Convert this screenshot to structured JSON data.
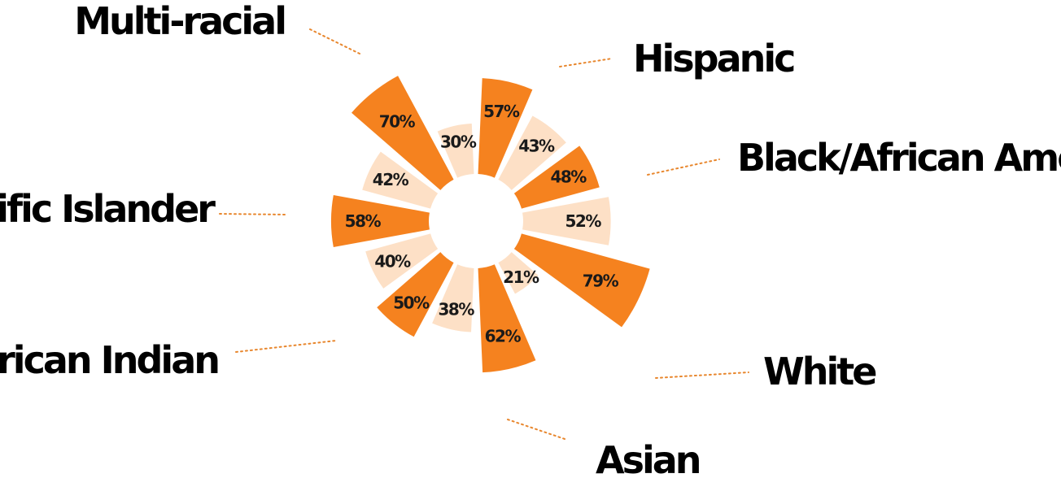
{
  "chart_data": {
    "type": "polar-bar",
    "title": "",
    "series": [
      {
        "color": "#F5821F"
      },
      {
        "color": "#FDE0C6"
      }
    ],
    "categories": [
      {
        "label": "Hispanic",
        "values": [
          57,
          43
        ],
        "labels": [
          "57%",
          "43%"
        ]
      },
      {
        "label": "Black/African American",
        "values": [
          48,
          52
        ],
        "labels": [
          "48%",
          "52%"
        ]
      },
      {
        "label": "White",
        "values": [
          79,
          21
        ],
        "labels": [
          "79%",
          "21%"
        ]
      },
      {
        "label": "Asian",
        "values": [
          62,
          38
        ],
        "labels": [
          "62%",
          "38%"
        ]
      },
      {
        "label": "American Indian",
        "values": [
          50,
          40
        ],
        "labels": [
          "50%",
          "40%"
        ]
      },
      {
        "label": "Pacific Islander",
        "values": [
          58,
          42
        ],
        "labels": [
          "58%",
          "42%"
        ]
      },
      {
        "label": "Multi-racial",
        "values": [
          70,
          30
        ],
        "labels": [
          "70%",
          "30%"
        ]
      }
    ],
    "leader_color": "#E8872E",
    "background": "#FFFFFF"
  }
}
